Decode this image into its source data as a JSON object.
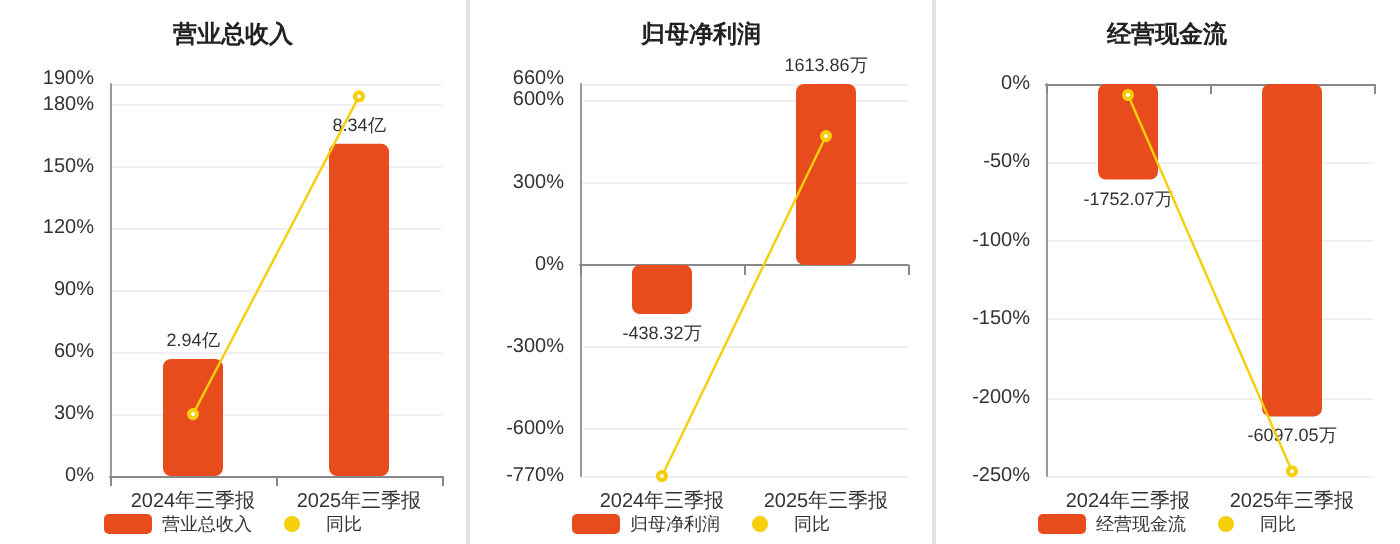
{
  "chart_data": [
    {
      "type": "bar",
      "title": "营业总收入",
      "categories": [
        "2024年三季报",
        "2025年三季报"
      ],
      "series": [
        {
          "name": "营业总收入",
          "axis": "y2",
          "color": "#e84c1c",
          "values": [
            2.94,
            8.34
          ],
          "value_labels": [
            "2.94亿",
            "8.34亿"
          ]
        },
        {
          "name": "同比",
          "type": "line",
          "color": "#f5cf0c",
          "values": [
            30,
            184
          ],
          "marker": "circle"
        }
      ],
      "ylim": [
        0,
        190
      ],
      "yticks": [
        {
          "value": 0,
          "label": "0%"
        },
        {
          "value": 30,
          "label": "30%"
        },
        {
          "value": 60,
          "label": "60%"
        },
        {
          "value": 90,
          "label": "90%"
        },
        {
          "value": 120,
          "label": "120%"
        },
        {
          "value": 150,
          "label": "150%"
        },
        {
          "value": 180,
          "label": "180%"
        },
        {
          "value": 190,
          "label": "190%"
        }
      ],
      "y2lim": [
        0,
        9.84
      ],
      "grid": "y",
      "legend": "bottom"
    },
    {
      "type": "bar",
      "title": "归母净利润",
      "categories": [
        "2024年三季报",
        "2025年三季报"
      ],
      "series": [
        {
          "name": "归母净利润",
          "axis": "y2",
          "color": "#e84c1c",
          "values": [
            -438.32,
            1613.86
          ],
          "value_labels": [
            "-438.32万",
            "1613.86万"
          ]
        },
        {
          "name": "同比",
          "type": "line",
          "color": "#f5cf0c",
          "values": [
            -770,
            470
          ],
          "marker": "circle"
        }
      ],
      "ylim": [
        -770,
        660
      ],
      "yticks": [
        {
          "value": -770,
          "label": "-770%"
        },
        {
          "value": -600,
          "label": "-600%"
        },
        {
          "value": -300,
          "label": "-300%"
        },
        {
          "value": 0,
          "label": "0%"
        },
        {
          "value": 300,
          "label": "300%"
        },
        {
          "value": 600,
          "label": "600%"
        },
        {
          "value": 660,
          "label": "660%"
        }
      ],
      "y2lim": [
        -1883,
        1614
      ],
      "grid": "y",
      "legend": "bottom"
    },
    {
      "type": "bar",
      "title": "经营现金流",
      "categories": [
        "2024年三季报",
        "2025年三季报"
      ],
      "series": [
        {
          "name": "经营现金流",
          "axis": "y2",
          "color": "#e84c1c",
          "values": [
            -1752.07,
            -6097.05
          ],
          "value_labels": [
            "-1752.07万",
            "-6097.05万"
          ]
        },
        {
          "name": "同比",
          "type": "line",
          "color": "#f5cf0c",
          "values": [
            -7,
            -247
          ],
          "marker": "circle"
        }
      ],
      "ylim": [
        -250,
        0
      ],
      "yticks": [
        {
          "value": -250,
          "label": "-250%"
        },
        {
          "value": -200,
          "label": "-200%"
        },
        {
          "value": -150,
          "label": "-150%"
        },
        {
          "value": -100,
          "label": "-100%"
        },
        {
          "value": -50,
          "label": "-50%"
        },
        {
          "value": 0,
          "label": "0%"
        }
      ],
      "y2lim": [
        -7190,
        0
      ],
      "grid": "y",
      "legend": "bottom"
    }
  ]
}
